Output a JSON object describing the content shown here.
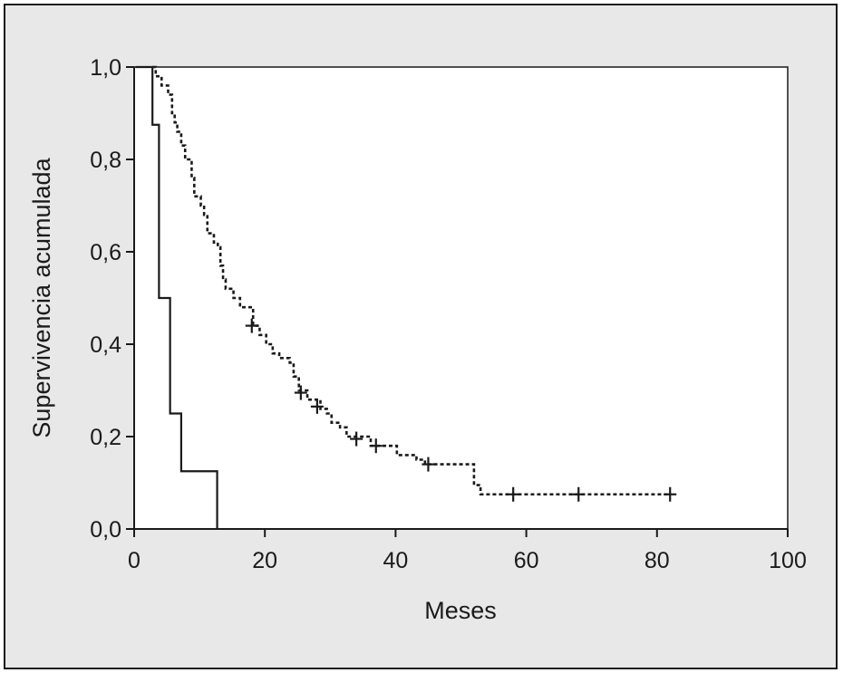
{
  "chart_data": {
    "type": "line",
    "subtype": "kaplan-meier-step",
    "title": "",
    "xlabel": "Meses",
    "ylabel": "Supervivencia acumulada",
    "xlim": [
      0,
      100
    ],
    "ylim": [
      0.0,
      1.0
    ],
    "x_ticks": [
      0,
      20,
      40,
      60,
      80,
      100
    ],
    "y_ticks": [
      0.0,
      0.2,
      0.4,
      0.6,
      0.8,
      1.0
    ],
    "x_tick_labels": [
      "0",
      "20",
      "40",
      "60",
      "80",
      "100"
    ],
    "y_tick_labels": [
      "0,0",
      "0,2",
      "0,4",
      "0,6",
      "0,8",
      "1,0"
    ],
    "grid": false,
    "legend": "none",
    "series": [
      {
        "style": "solid",
        "color": "#1a1a1a",
        "steps": [
          [
            0.2,
            1.0
          ],
          [
            2.8,
            0.875
          ],
          [
            3.8,
            0.5
          ],
          [
            5.5,
            0.25
          ],
          [
            7.2,
            0.125
          ],
          [
            12.7,
            0.0
          ]
        ],
        "censored": []
      },
      {
        "style": "dashed",
        "color": "#1a1a1a",
        "steps": [
          [
            2.8,
            1.0
          ],
          [
            3.3,
            0.98
          ],
          [
            4.2,
            0.96
          ],
          [
            5.2,
            0.94
          ],
          [
            5.8,
            0.9
          ],
          [
            6.2,
            0.88
          ],
          [
            6.6,
            0.86
          ],
          [
            7.2,
            0.83
          ],
          [
            7.8,
            0.8
          ],
          [
            8.8,
            0.76
          ],
          [
            9.2,
            0.72
          ],
          [
            10.2,
            0.7
          ],
          [
            10.7,
            0.68
          ],
          [
            11.2,
            0.64
          ],
          [
            12.2,
            0.62
          ],
          [
            12.8,
            0.61
          ],
          [
            13.2,
            0.57
          ],
          [
            13.6,
            0.54
          ],
          [
            14.0,
            0.52
          ],
          [
            15.2,
            0.5
          ],
          [
            16.2,
            0.48
          ],
          [
            18.2,
            0.44
          ],
          [
            19.2,
            0.42
          ],
          [
            20.2,
            0.4
          ],
          [
            21.2,
            0.38
          ],
          [
            22.2,
            0.37
          ],
          [
            23.8,
            0.36
          ],
          [
            24.4,
            0.33
          ],
          [
            25.2,
            0.3
          ],
          [
            26.5,
            0.28
          ],
          [
            28.5,
            0.26
          ],
          [
            29.5,
            0.25
          ],
          [
            30.2,
            0.23
          ],
          [
            31.5,
            0.22
          ],
          [
            32.5,
            0.2
          ],
          [
            36.2,
            0.18
          ],
          [
            40.2,
            0.16
          ],
          [
            43.2,
            0.15
          ],
          [
            44.5,
            0.14
          ],
          [
            52.0,
            0.095
          ],
          [
            53.0,
            0.075
          ],
          [
            82.0,
            0.075
          ]
        ],
        "censored": [
          [
            18.0,
            0.44
          ],
          [
            25.5,
            0.295
          ],
          [
            28.0,
            0.265
          ],
          [
            34.0,
            0.195
          ],
          [
            37.0,
            0.18
          ],
          [
            45.0,
            0.14
          ],
          [
            58.0,
            0.075
          ],
          [
            68.0,
            0.075
          ],
          [
            82.0,
            0.075
          ]
        ]
      }
    ]
  }
}
